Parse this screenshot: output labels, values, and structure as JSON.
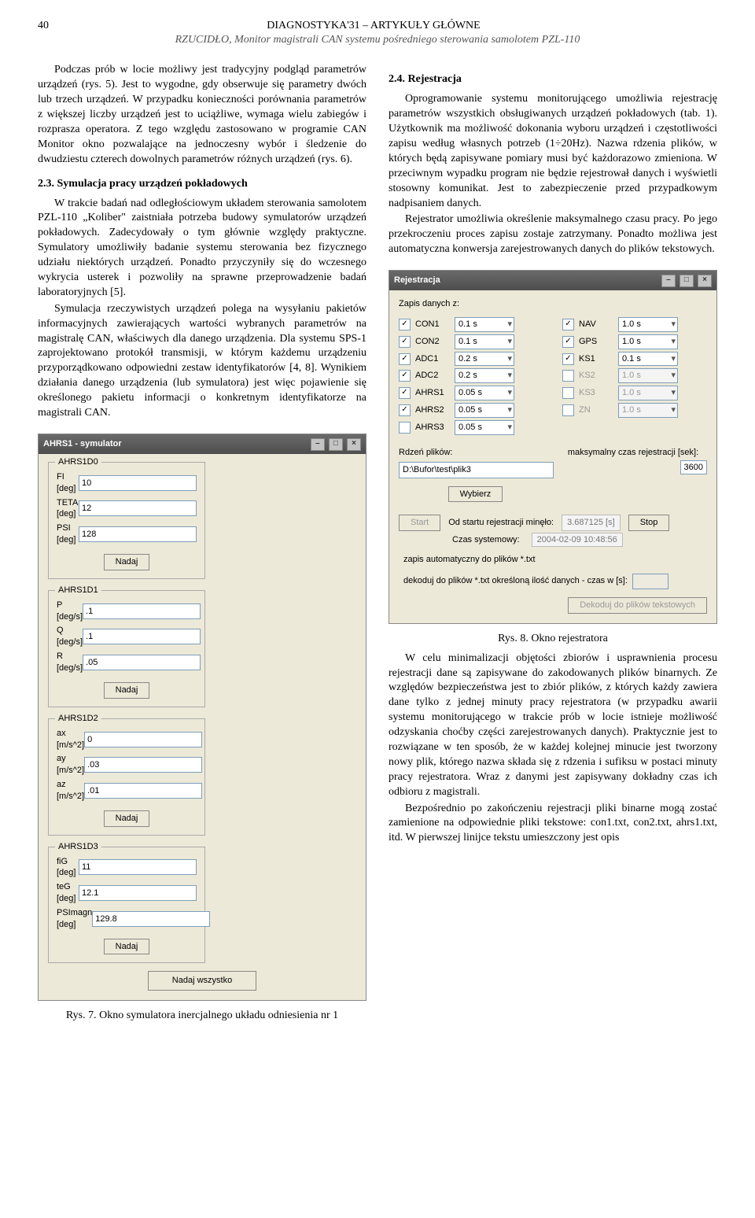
{
  "header": {
    "page_number": "40",
    "line1": "DIAGNOSTYKA'31 – ARTYKUŁY GŁÓWNE",
    "line2": "RZUCIDŁO, Monitor magistrali CAN systemu pośredniego sterowania samolotem PZL-110"
  },
  "left": {
    "p1": "Podczas prób w locie możliwy jest tradycyjny podgląd parametrów urządzeń (rys. 5). Jest to wygodne, gdy obserwuje się parametry dwóch lub trzech urządzeń. W przypadku konieczności porównania parametrów z większej liczby urządzeń jest to uciążliwe, wymaga wielu zabiegów i rozprasza operatora. Z tego względu zastosowano w programie CAN Monitor okno pozwalające na jednoczesny wybór i śledzenie do dwudziestu czterech dowolnych parametrów różnych urządzeń (rys. 6).",
    "h23": "2.3. Symulacja pracy urządzeń pokładowych",
    "p2": "W trakcie badań nad odległościowym układem sterowania samolotem PZL-110 „Koliber\" zaistniała potrzeba budowy symulatorów urządzeń pokładowych. Zadecydowały o tym głównie względy praktyczne. Symulatory umożliwiły badanie systemu sterowania bez fizycznego udziału niektórych urządzeń. Ponadto przyczyniły się do wczesnego wykrycia usterek i pozwoliły na sprawne przeprowadzenie badań laboratoryjnych [5].",
    "p3": "Symulacja rzeczywistych urządzeń polega na wysyłaniu pakietów informacyjnych zawierających wartości wybranych parametrów na magistralę CAN, właściwych dla danego urządzenia. Dla systemu SPS-1 zaprojektowano protokół transmisji, w którym każdemu urządzeniu przyporządkowano odpowiedni zestaw identyfikatorów [4, 8]. Wynikiem działania danego urządzenia (lub symulatora) jest więc pojawienie się określonego pakietu informacji o konkretnym identyfikatorze na magistrali CAN.",
    "fig7_caption": "Rys. 7. Okno symulatora inercjalnego układu odniesienia nr 1"
  },
  "right": {
    "h24": "2.4. Rejestracja",
    "p1": "Oprogramowanie systemu monitorującego umożliwia rejestrację parametrów wszystkich obsługiwanych urządzeń pokładowych (tab. 1). Użytkownik ma możliwość dokonania wyboru urządzeń i częstotliwości zapisu według własnych potrzeb (1÷20Hz). Nazwa rdzenia plików, w których będą zapisywane pomiary musi być każdorazowo zmieniona. W przeciwnym wypadku program nie będzie rejestrował danych i wyświetli stosowny komunikat. Jest to zabezpieczenie przed przypadkowym nadpisaniem danych.",
    "p2": "Rejestrator umożliwia określenie maksymalnego czasu pracy. Po jego przekroczeniu proces zapisu zostaje zatrzymany. Ponadto możliwa jest automatyczna konwersja zarejestrowanych danych do plików tekstowych.",
    "fig8_caption": "Rys. 8. Okno rejestratora",
    "p3": "W celu minimalizacji objętości zbiorów i usprawnienia procesu rejestracji dane są zapisywane do zakodowanych plików binarnych. Ze względów bezpieczeństwa jest to zbiór plików, z których każdy zawiera dane tylko z jednej minuty pracy rejestratora (w przypadku awarii systemu monitorującego w trakcie prób w locie istnieje możliwość odzyskania choćby części zarejestrowanych danych). Praktycznie jest to rozwiązane w ten sposób, że w każdej kolejnej minucie jest tworzony nowy plik, którego nazwa składa się z rdzenia i sufiksu w postaci minuty pracy rejestratora. Wraz z danymi jest zapisywany dokładny czas ich odbioru z magistrali.",
    "p4": "Bezpośrednio po zakończeniu rejestracji pliki binarne mogą zostać zamienione na odpowiednie pliki tekstowe: con1.txt, con2.txt, ahrs1.txt, itd. W pierwszej linijce tekstu umieszczony jest opis"
  },
  "ahrs": {
    "title": "AHRS1 - symulator",
    "groups": [
      {
        "label": "AHRS1D0",
        "rows": [
          {
            "l": "FI [deg]",
            "v": "10"
          },
          {
            "l": "TETA [deg]",
            "v": "12"
          },
          {
            "l": "PSI [deg]",
            "v": "128"
          }
        ]
      },
      {
        "label": "AHRS1D1",
        "rows": [
          {
            "l": "P [deg/s]",
            "v": ".1"
          },
          {
            "l": "Q [deg/s]",
            "v": ".1"
          },
          {
            "l": "R [deg/s]",
            "v": ".05"
          }
        ]
      },
      {
        "label": "AHRS1D2",
        "rows": [
          {
            "l": "ax [m/s^2]",
            "v": "0"
          },
          {
            "l": "ay [m/s^2]",
            "v": ".03"
          },
          {
            "l": "az [m/s^2]",
            "v": ".01"
          }
        ]
      },
      {
        "label": "AHRS1D3",
        "rows": [
          {
            "l": "fiG [deg]",
            "v": "11"
          },
          {
            "l": "teG [deg]",
            "v": "12.1"
          },
          {
            "l": "PSImagn [deg]",
            "v": "129.8"
          }
        ]
      }
    ],
    "btn_nadaj": "Nadaj",
    "btn_all": "Nadaj wszystko"
  },
  "reg": {
    "title": "Rejestracja",
    "top_label": "Zapis danych z:",
    "left_items": [
      {
        "lab": "CON1",
        "v": "0.1 s",
        "en": true
      },
      {
        "lab": "CON2",
        "v": "0.1 s",
        "en": true
      },
      {
        "lab": "ADC1",
        "v": "0.2 s",
        "en": true
      },
      {
        "lab": "ADC2",
        "v": "0.2 s",
        "en": true
      },
      {
        "lab": "AHRS1",
        "v": "0.05 s",
        "en": true
      },
      {
        "lab": "AHRS2",
        "v": "0.05 s",
        "en": true
      },
      {
        "lab": "AHRS3",
        "v": "0.05 s",
        "en": false
      }
    ],
    "right_items": [
      {
        "lab": "NAV",
        "v": "1.0 s",
        "en": true
      },
      {
        "lab": "GPS",
        "v": "1.0 s",
        "en": true
      },
      {
        "lab": "KS1",
        "v": "0.1 s",
        "en": true
      },
      {
        "lab": "KS2",
        "v": "1.0 s",
        "en": false,
        "dis": true
      },
      {
        "lab": "KS3",
        "v": "1.0 s",
        "en": false,
        "dis": true
      },
      {
        "lab": "ZN",
        "v": "1.0 s",
        "en": false,
        "dis": true
      }
    ],
    "rdzen_label": "Rdzeń plików:",
    "path": "D:\\Bufor\\test\\plik3",
    "wybierz": "Wybierz",
    "maxtime_label": "maksymalny czas rejestracji [sek]:",
    "maxtime": "3600",
    "start": "Start",
    "elapsed_label": "Od startu rejestracji minęło:",
    "elapsed": "3.687125 [s]",
    "stop": "Stop",
    "czas_label": "Czas systemowy:",
    "czas": "2004-02-09 10:48:56",
    "auto_label": "zapis automatyczny do plików *.txt",
    "dekoduj_label": "dekoduj do plików *.txt określoną ilość danych - czas w [s]:",
    "dekoduj_btn": "Dekoduj do plików tekstowych"
  }
}
